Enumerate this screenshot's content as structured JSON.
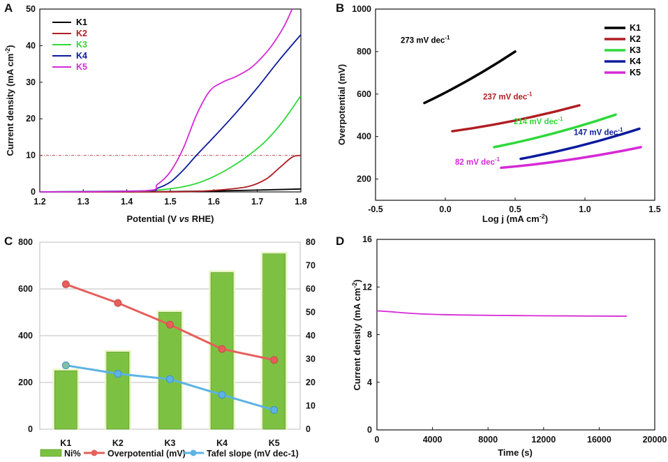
{
  "colors": {
    "K1": "#000000",
    "K2": "#b01e23",
    "K3": "#2fd83a",
    "K4": "#0a1a9c",
    "K5": "#d62ad6"
  },
  "chart_data": [
    {
      "panel": "A",
      "type": "line",
      "xlabel_parts": [
        "Potential (V ",
        "vs",
        " RHE)"
      ],
      "ylabel": "Current density (mA cm",
      "ylabel_sup": "-2",
      "ylabel_end": ")",
      "xlim": [
        1.2,
        1.8
      ],
      "ylim": [
        0,
        50
      ],
      "xticks": [
        "1.2",
        "1.3",
        "1.4",
        "1.5",
        "1.6",
        "1.7",
        "1.8"
      ],
      "yticks": [
        "0",
        "10",
        "20",
        "30",
        "40",
        "50"
      ],
      "reference_line_y": 10,
      "legend": [
        "K1",
        "K2",
        "K3",
        "K4",
        "K5"
      ],
      "series": [
        {
          "name": "K1",
          "x": [
            1.2,
            1.4,
            1.5,
            1.6,
            1.7,
            1.8
          ],
          "y": [
            0,
            0,
            0.1,
            0.25,
            0.5,
            0.8
          ]
        },
        {
          "name": "K2",
          "x": [
            1.2,
            1.45,
            1.55,
            1.62,
            1.68,
            1.72,
            1.75,
            1.78,
            1.8
          ],
          "y": [
            0,
            0,
            0.1,
            0.6,
            1.5,
            3.5,
            6.5,
            9.5,
            10
          ]
        },
        {
          "name": "K3",
          "x": [
            1.2,
            1.42,
            1.47,
            1.52,
            1.56,
            1.6,
            1.64,
            1.68,
            1.72,
            1.76,
            1.8
          ],
          "y": [
            0,
            0.2,
            0.5,
            1.2,
            2.3,
            4.2,
            6.8,
            10,
            14,
            19.5,
            26.3
          ]
        },
        {
          "name": "K4",
          "x": [
            1.2,
            1.44,
            1.47,
            1.5,
            1.53,
            1.56,
            1.6,
            1.65,
            1.7,
            1.75,
            1.8
          ],
          "y": [
            0,
            0.3,
            1,
            2.7,
            6,
            10,
            15,
            21.5,
            28.5,
            36,
            43
          ]
        },
        {
          "name": "K5",
          "x": [
            1.2,
            1.44,
            1.47,
            1.5,
            1.53,
            1.56,
            1.59,
            1.62,
            1.65,
            1.68,
            1.7,
            1.73,
            1.76,
            1.78
          ],
          "y": [
            0,
            0.3,
            2,
            5.5,
            12,
            21,
            27.5,
            30,
            31.5,
            33.5,
            35.5,
            39.5,
            45,
            50
          ]
        }
      ]
    },
    {
      "panel": "B",
      "type": "line",
      "xlabel": "Log j (mA cm",
      "xlabel_sup": "-2",
      "xlabel_end": ")",
      "ylabel": "Overpotential (mV)",
      "xlim": [
        -0.5,
        1.5
      ],
      "ylim": [
        100,
        1000
      ],
      "xticks": [
        "-0.5",
        "0.0",
        "0.5",
        "1.0",
        "1.5"
      ],
      "yticks": [
        "200",
        "400",
        "600",
        "800",
        "1000"
      ],
      "legend": [
        "K1",
        "K2",
        "K3",
        "K4",
        "K5"
      ],
      "series": [
        {
          "name": "K1",
          "x": [
            -0.15,
            0.5
          ],
          "y": [
            558,
            800
          ],
          "label": "273 mV dec",
          "label_sup": "-1"
        },
        {
          "name": "K2",
          "x": [
            0.05,
            0.96
          ],
          "y": [
            425,
            547
          ],
          "label": "237 mV dec",
          "label_sup": "-1"
        },
        {
          "name": "K3",
          "x": [
            0.35,
            1.22
          ],
          "y": [
            350,
            503
          ],
          "label": "214 mV dec",
          "label_sup": "-1"
        },
        {
          "name": "K4",
          "x": [
            0.54,
            1.39
          ],
          "y": [
            295,
            437
          ],
          "label": "147 mV dec",
          "label_sup": "-1"
        },
        {
          "name": "K5",
          "x": [
            0.4,
            1.4
          ],
          "y": [
            253,
            350
          ],
          "label": "82 mV dec",
          "label_sup": "-1"
        }
      ]
    },
    {
      "panel": "C",
      "type": "bar",
      "categories": [
        "K1",
        "K2",
        "K3",
        "K4",
        "K5"
      ],
      "ylim_left": [
        0,
        800
      ],
      "ylim_right": [
        0,
        80
      ],
      "yticks_left": [
        "0",
        "200",
        "400",
        "600",
        "800"
      ],
      "yticks_right": [
        "0",
        "10",
        "20",
        "30",
        "40",
        "50",
        "60",
        "70",
        "80"
      ],
      "series": [
        {
          "name": "Ni%",
          "axis": "left",
          "values": [
            250,
            330,
            500,
            670,
            750
          ],
          "color": "#7dc142"
        },
        {
          "name": "Overpotential (mV)",
          "axis": "left",
          "values": [
            620,
            540,
            447,
            343,
            296
          ],
          "color": "#e65f5b"
        },
        {
          "name": "Tafel slope (mV dec-1)",
          "axis": "left",
          "values": [
            273,
            237,
            214,
            147,
            82
          ],
          "color": "#5cb3e4"
        }
      ],
      "legend": [
        "Ni%",
        "Overpotential (mV)",
        "Tafel slope (mV dec-1)"
      ]
    },
    {
      "panel": "D",
      "type": "line",
      "xlabel": "Time (s)",
      "ylabel": "Current density (mA cm",
      "ylabel_sup": "-2",
      "ylabel_end": ")",
      "xlim": [
        0,
        20000
      ],
      "ylim": [
        0,
        16
      ],
      "xticks": [
        "0",
        "4000",
        "8000",
        "12000",
        "16000",
        "20000"
      ],
      "yticks": [
        "0",
        "4",
        "8",
        "12",
        "16"
      ],
      "series": [
        {
          "name": "K5",
          "x": [
            0,
            1000,
            3000,
            6000,
            10000,
            14000,
            18000
          ],
          "y": [
            10,
            9.92,
            9.75,
            9.65,
            9.6,
            9.57,
            9.55
          ]
        }
      ]
    }
  ]
}
